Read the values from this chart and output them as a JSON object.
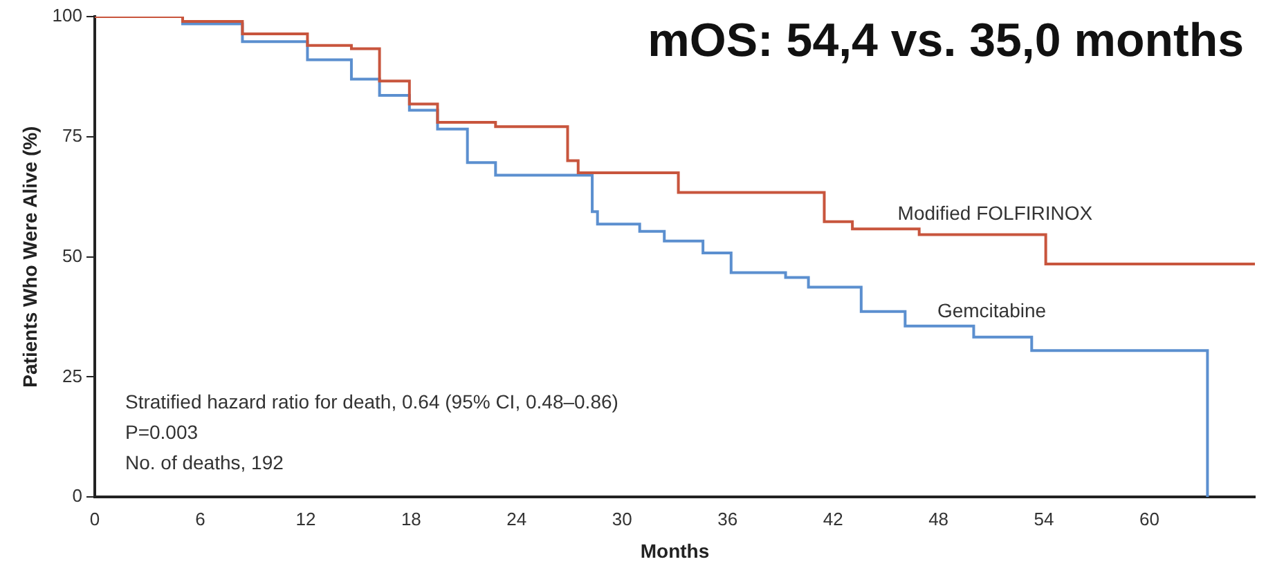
{
  "chart_data": {
    "type": "step",
    "title": "mOS: 54,4 vs. 35,0 months",
    "xlabel": "Months",
    "ylabel": "Patients Who Were Alive (%)",
    "xlim": [
      0,
      66
    ],
    "xticks": [
      0,
      6,
      12,
      18,
      24,
      30,
      36,
      42,
      48,
      54,
      60
    ],
    "ylim": [
      0,
      100
    ],
    "yticks": [
      0,
      25,
      50,
      75,
      100
    ],
    "grid": false,
    "legend": false,
    "annotations": [
      "Stratified hazard ratio for death, 0.64 (95% CI, 0.48–0.86)",
      "P=0.003",
      "No. of deaths, 192"
    ],
    "series": [
      {
        "name": "Modified FOLFIRINOX",
        "color": "#c8553d",
        "x": [
          0,
          5,
          8.4,
          12.1,
          14.6,
          16.2,
          17.9,
          19.5,
          22.8,
          26.9,
          27.5,
          33.2,
          41.5,
          43.1,
          46.9,
          54.1,
          66
        ],
        "values": [
          100,
          99,
          96.4,
          94,
          93.3,
          86.6,
          81.8,
          78,
          77.1,
          70,
          67.5,
          63.4,
          57.3,
          55.8,
          54.6,
          48.5,
          48.5
        ]
      },
      {
        "name": "Gemcitabine",
        "color": "#5b8fcf",
        "x": [
          0,
          5,
          8.4,
          12.1,
          14.6,
          16.2,
          17.9,
          19.5,
          21.2,
          22.8,
          28.3,
          28.6,
          31,
          32.4,
          34.6,
          36.2,
          39.3,
          40.6,
          43.6,
          46.1,
          50,
          53.3,
          63.3,
          63.3
        ],
        "values": [
          100,
          98.5,
          94.8,
          91,
          87,
          83.6,
          80.5,
          76.6,
          69.6,
          67,
          59.4,
          56.8,
          55.3,
          53.3,
          50.8,
          46.7,
          45.7,
          43.7,
          38.6,
          35.6,
          33.3,
          30.5,
          30.5,
          0
        ]
      }
    ]
  }
}
